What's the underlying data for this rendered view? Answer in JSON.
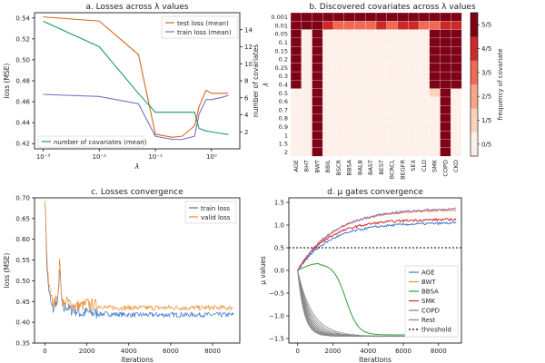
{
  "colors": {
    "test": "#d2691e",
    "train": "#7b6cc7",
    "ncov": "#1a9a72",
    "blue": "#3b78c8",
    "orange": "#f08c2a",
    "green": "#2ca02c",
    "red": "#d62728",
    "purple": "#9467bd",
    "gray": "#888888",
    "heat": [
      "#fdf0e8",
      "#fcd2bc",
      "#f7a487",
      "#ef6a52",
      "#cc2a2a",
      "#7e0316"
    ]
  },
  "chart_data": [
    {
      "id": "a",
      "type": "line",
      "title": "a. Losses across λ values",
      "xlabel": "λ",
      "ylabel": "loss (MSE)",
      "y2label": "number of covariates",
      "xscale": "log",
      "xlim": [
        0.0007,
        3.2
      ],
      "ylim": [
        0.415,
        0.545
      ],
      "y2lim": [
        0,
        16
      ],
      "xticks": [
        0.001,
        0.01,
        0.1,
        1
      ],
      "xtick_labels": [
        "10⁻³",
        "10⁻²",
        "10⁻¹",
        "10⁰"
      ],
      "yticks": [
        0.42,
        0.44,
        0.46,
        0.48,
        0.5,
        0.52,
        0.54
      ],
      "ytick_labels": [
        "0.42",
        "0.44",
        "0.46",
        "0.48",
        "0.50",
        "0.52",
        "0.54"
      ],
      "y2ticks": [
        2,
        4,
        6,
        8,
        10,
        12,
        14
      ],
      "y2tick_labels": [
        "2",
        "4",
        "6",
        "8",
        "10",
        "12",
        "14"
      ],
      "x": [
        0.001,
        0.01,
        0.05,
        0.1,
        0.2,
        0.3,
        0.5,
        0.6,
        0.8,
        1.0,
        1.5,
        2.0
      ],
      "series": [
        {
          "name": "test loss (mean)",
          "color_key": "test",
          "axis": "left",
          "values": [
            0.541,
            0.537,
            0.505,
            0.429,
            0.426,
            0.427,
            0.437,
            0.455,
            0.471,
            0.468,
            0.468,
            0.468
          ]
        },
        {
          "name": "train loss (mean)",
          "color_key": "train",
          "axis": "left",
          "values": [
            0.467,
            0.465,
            0.458,
            0.427,
            0.424,
            0.424,
            0.427,
            0.448,
            0.462,
            0.462,
            0.464,
            0.466
          ]
        },
        {
          "name": "number of covariates (mean)",
          "color_key": "ncov",
          "axis": "right",
          "values": [
            15,
            12,
            6.5,
            4.3,
            4.3,
            4.3,
            4.3,
            2.4,
            2.1,
            2.0,
            1.8,
            1.7
          ]
        }
      ]
    },
    {
      "id": "b",
      "type": "heatmap",
      "title": "b. Discovered covariates across λ values",
      "ylabel": "λ",
      "colorbar_label": "frequency of covariate",
      "colorbar_ticks": [
        "0/5",
        "1/5",
        "2/5",
        "3/5",
        "4/5",
        "5/5"
      ],
      "rows": [
        "0.001",
        "0.01",
        "0.05",
        "0.1",
        "0.15",
        "0.2",
        "0.25",
        "0.3",
        "0.4",
        "0.5",
        "0.6",
        "0.7",
        "0.8",
        "0.9",
        "1",
        "1.5",
        "2"
      ],
      "columns": [
        "AGE",
        "BHT",
        "BWT",
        "BBIL",
        "BSCR",
        "BBSA",
        "BALB",
        "BAST",
        "BEST",
        "BCRCL",
        "BEGFR",
        "SEX",
        "CLD",
        "SMK",
        "COPD",
        "CKD"
      ],
      "values": [
        [
          5,
          5,
          5,
          5,
          5,
          5,
          5,
          5,
          5,
          5,
          5,
          5,
          5,
          5,
          5,
          5
        ],
        [
          5,
          5,
          5,
          4,
          3,
          3,
          3,
          3,
          4,
          3,
          4,
          4,
          3,
          3,
          4,
          4
        ],
        [
          5,
          0,
          5,
          0,
          0,
          0,
          0,
          0,
          0,
          0,
          0,
          0,
          0,
          5,
          5,
          5
        ],
        [
          5,
          0,
          5,
          0,
          0,
          0,
          0,
          0,
          0,
          0,
          0,
          0,
          0,
          5,
          5,
          5
        ],
        [
          5,
          0,
          5,
          0,
          0,
          0,
          0,
          0,
          0,
          0,
          0,
          0,
          0,
          5,
          5,
          5
        ],
        [
          5,
          0,
          5,
          0,
          0,
          0,
          0,
          0,
          0,
          0,
          0,
          0,
          0,
          5,
          5,
          5
        ],
        [
          5,
          0,
          5,
          0,
          0,
          0,
          0,
          0,
          0,
          0,
          0,
          0,
          0,
          5,
          5,
          5
        ],
        [
          5,
          0,
          5,
          0,
          0,
          0,
          0,
          0,
          0,
          0,
          0,
          0,
          0,
          5,
          5,
          5
        ],
        [
          5,
          0,
          5,
          0,
          0,
          0,
          0,
          0,
          0,
          0,
          0,
          0,
          0,
          5,
          5,
          5
        ],
        [
          0,
          0,
          5,
          0,
          0,
          0,
          0,
          0,
          0,
          0,
          0,
          0,
          0,
          1,
          5,
          0
        ],
        [
          0,
          0,
          5,
          0,
          0,
          0,
          0,
          0,
          0,
          0,
          0,
          0,
          0,
          0,
          5,
          0
        ],
        [
          0,
          0,
          5,
          0,
          0,
          0,
          0,
          0,
          0,
          0,
          0,
          0,
          0,
          0,
          5,
          0
        ],
        [
          0,
          0,
          5,
          0,
          0,
          0,
          0,
          0,
          0,
          0,
          0,
          0,
          0,
          0,
          5,
          0
        ],
        [
          0,
          0,
          5,
          0,
          0,
          0,
          0,
          0,
          0,
          0,
          0,
          0,
          0,
          0,
          5,
          0
        ],
        [
          0,
          0,
          5,
          0,
          0,
          0,
          0,
          0,
          0,
          0,
          0,
          0,
          0,
          0,
          5,
          0
        ],
        [
          0,
          0,
          5,
          0,
          0,
          0,
          0,
          0,
          0,
          0,
          0,
          0,
          0,
          0,
          5,
          0
        ],
        [
          0,
          0,
          5,
          0,
          0,
          0,
          0,
          0,
          0,
          0,
          0,
          0,
          0,
          0,
          5,
          0
        ]
      ]
    },
    {
      "id": "c",
      "type": "line",
      "title": "c. Losses convergence",
      "xlabel": "iterations",
      "ylabel": "loss (MSE)",
      "xlim": [
        -500,
        9300
      ],
      "ylim": [
        0.35,
        0.7
      ],
      "xticks": [
        0,
        2000,
        4000,
        6000,
        8000
      ],
      "xtick_labels": [
        "0",
        "2000",
        "4000",
        "6000",
        "8000"
      ],
      "yticks": [
        0.35,
        0.4,
        0.45,
        0.5,
        0.55,
        0.6,
        0.65,
        0.7
      ],
      "ytick_labels": [
        "0.35",
        "0.40",
        "0.45",
        "0.50",
        "0.55",
        "0.60",
        "0.65",
        "0.70"
      ],
      "series": [
        {
          "name": "train loss",
          "color_key": "blue",
          "x": [
            0,
            100,
            200,
            300,
            400,
            500,
            600,
            700,
            800,
            900,
            1000,
            1200,
            1400,
            1600,
            1800,
            2000,
            2500,
            3000,
            4000,
            5000,
            6000,
            7000,
            8000,
            9000
          ],
          "values": [
            0.7,
            0.52,
            0.47,
            0.44,
            0.43,
            0.45,
            0.44,
            0.53,
            0.45,
            0.43,
            0.44,
            0.43,
            0.43,
            0.425,
            0.42,
            0.425,
            0.42,
            0.42,
            0.418,
            0.418,
            0.418,
            0.418,
            0.418,
            0.418
          ],
          "noise": 0.006
        },
        {
          "name": "valid loss",
          "color_key": "orange",
          "x": [
            0,
            100,
            200,
            300,
            400,
            500,
            600,
            700,
            800,
            900,
            1000,
            1200,
            1400,
            1600,
            1800,
            2000,
            2500,
            3000,
            4000,
            5000,
            6000,
            7000,
            8000,
            9000
          ],
          "values": [
            0.7,
            0.55,
            0.48,
            0.46,
            0.44,
            0.47,
            0.45,
            0.55,
            0.46,
            0.44,
            0.45,
            0.445,
            0.44,
            0.44,
            0.44,
            0.445,
            0.44,
            0.435,
            0.435,
            0.435,
            0.435,
            0.435,
            0.435,
            0.435
          ],
          "noise": 0.006
        }
      ]
    },
    {
      "id": "d",
      "type": "line",
      "title": "d. μ gates convergence",
      "xlabel": "Iterations",
      "ylabel": "μ values",
      "xlim": [
        -500,
        9300
      ],
      "ylim": [
        -1.6,
        1.6
      ],
      "xticks": [
        0,
        2000,
        4000,
        6000,
        8000
      ],
      "xtick_labels": [
        "0",
        "2000",
        "4000",
        "6000",
        "8000"
      ],
      "yticks": [
        -1.5,
        -1.0,
        -0.5,
        0.0,
        0.5,
        1.0,
        1.5
      ],
      "ytick_labels": [
        "−1.5",
        "−1.0",
        "−0.5",
        "0.0",
        "0.5",
        "1.0",
        "1.5"
      ],
      "threshold": 0.5,
      "series": [
        {
          "name": "AGE",
          "color_key": "blue",
          "final": 1.05,
          "rate": 0.00055
        },
        {
          "name": "BWT",
          "color_key": "orange",
          "final": 1.35,
          "rate": 0.0005
        },
        {
          "name": "BBSA",
          "color_key": "green",
          "peak": 0.15,
          "end": -1.42
        },
        {
          "name": "SMK",
          "color_key": "red",
          "final": 1.13,
          "rate": 0.00058
        },
        {
          "name": "COPD",
          "color_key": "purple",
          "final": 1.37,
          "rate": 0.00048
        },
        {
          "name": "Rest",
          "color_key": "gray",
          "final": -1.45,
          "count": 11
        },
        {
          "name": "threshold",
          "color_key": "black",
          "dashed": true
        }
      ]
    }
  ]
}
